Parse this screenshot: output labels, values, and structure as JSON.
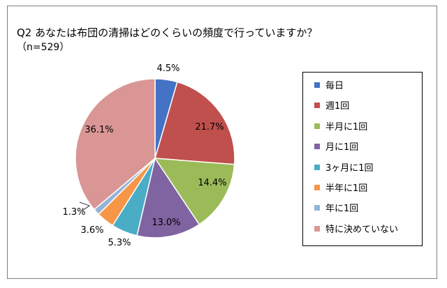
{
  "chart_data": {
    "type": "pie",
    "title": "Q2 あなたは布団の清掃はどのくらいの頻度で行っていますか？",
    "subtitle": "（n=529）",
    "legend_position": "right",
    "categories": [
      "毎日",
      "週1回",
      "半月に1回",
      "月に1回",
      "3ヶ月に1回",
      "半年に1回",
      "年に1回",
      "特に決めていない"
    ],
    "values": [
      4.5,
      21.7,
      14.4,
      13.0,
      5.3,
      3.6,
      1.3,
      36.1
    ],
    "labels": [
      "4.5%",
      "21.7%",
      "14.4%",
      "13.0%",
      "5.3%",
      "3.6%",
      "1.3%",
      "36.1%"
    ],
    "colors": [
      "#4472c4",
      "#c0504d",
      "#9bbb59",
      "#8064a2",
      "#4bacc6",
      "#f79646",
      "#95b3d7",
      "#d99694"
    ]
  }
}
